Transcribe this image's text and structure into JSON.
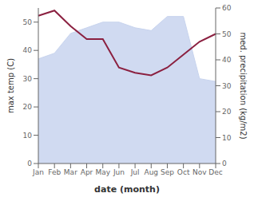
{
  "chart_data": {
    "type": "combo",
    "x_label": "date (month)",
    "y_label": "max temp (C)",
    "y2_label": "med. precipitation (kg/m2)",
    "categories": [
      "Jan",
      "Feb",
      "Mar",
      "Apr",
      "May",
      "Jun",
      "Jul",
      "Aug",
      "Sep",
      "Oct",
      "Nov",
      "Dec"
    ],
    "series": [
      {
        "type": "area",
        "color": "#c8d4ee",
        "values": [
          37,
          39,
          46,
          48,
          50,
          50,
          48,
          47,
          52,
          52,
          30,
          29
        ]
      },
      {
        "type": "line",
        "color": "#8b2040",
        "axis": "y2",
        "values": [
          57,
          59,
          53,
          48,
          48,
          37,
          35,
          34,
          37,
          42,
          47,
          50
        ]
      }
    ],
    "ylim": [
      0,
      55
    ],
    "yticks": [
      0,
      10,
      20,
      30,
      40,
      50
    ],
    "y2lim": [
      0,
      60
    ],
    "y2ticks": [
      0,
      10,
      20,
      30,
      40,
      50,
      60
    ],
    "grid": false
  }
}
